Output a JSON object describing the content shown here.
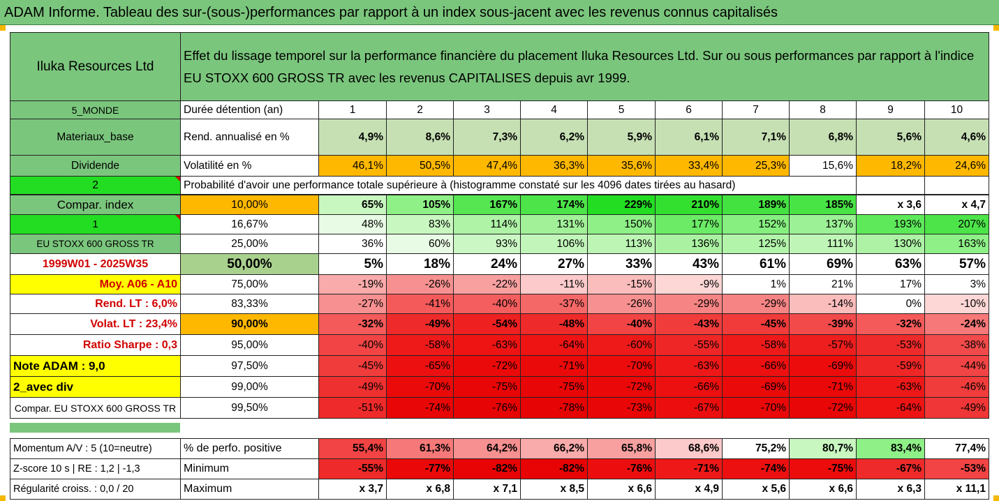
{
  "banner": "ADAM Informe. Tableau des sur-(sous-)performances par rapport à un index sous-jacent avec les revenus connus capitalisés",
  "header": {
    "company": "Iluka Resources Ltd",
    "description": "Effet du lissage temporel sur la performance financière du placement Iluka Resources Ltd. Sur ou sous performances par rapport à l'indice EU STOXX 600 GROSS TR avec les revenus CAPITALISES depuis avr 1999."
  },
  "years": [
    "1",
    "2",
    "3",
    "4",
    "5",
    "6",
    "7",
    "8",
    "9",
    "10"
  ],
  "rows_top": {
    "r1": {
      "left": "5_MONDE",
      "label": "Durée détention (an)"
    },
    "r2": {
      "left": "Materiaux_base",
      "label": "Rend. annualisé en %",
      "values": [
        "4,9%",
        "8,6%",
        "7,3%",
        "6,2%",
        "5,9%",
        "6,1%",
        "7,1%",
        "6,8%",
        "5,6%",
        "4,6%"
      ]
    },
    "r3": {
      "left": "Dividende",
      "label": "Volatilité en %",
      "values": [
        "46,1%",
        "50,5%",
        "47,4%",
        "36,3%",
        "35,6%",
        "33,4%",
        "25,3%",
        "15,6%",
        "18,2%",
        "24,6%"
      ]
    },
    "r4": {
      "left": "2",
      "label": "Probabilité d'avoir une performance totale supérieure à (histogramme constaté sur les 4096 dates tirées au hasard)"
    }
  },
  "prob_rows": [
    {
      "left": "Compar. index",
      "pct": "10,00%",
      "values": [
        "65%",
        "105%",
        "167%",
        "174%",
        "229%",
        "210%",
        "189%",
        "185%",
        "x 3,6",
        "x 4,7"
      ]
    },
    {
      "left": "1",
      "pct": "16,67%",
      "values": [
        "48%",
        "83%",
        "114%",
        "131%",
        "150%",
        "177%",
        "152%",
        "137%",
        "193%",
        "207%"
      ]
    },
    {
      "left": "EU STOXX 600 GROSS TR",
      "pct": "25,00%",
      "values": [
        "36%",
        "60%",
        "93%",
        "106%",
        "113%",
        "136%",
        "125%",
        "111%",
        "130%",
        "163%"
      ]
    },
    {
      "left": "1999W01 - 2025W35",
      "pct": "50,00%",
      "values": [
        "5%",
        "18%",
        "24%",
        "27%",
        "33%",
        "43%",
        "61%",
        "69%",
        "63%",
        "57%"
      ]
    },
    {
      "left": "Moy. A06 - A10",
      "pct": "75,00%",
      "values": [
        "-19%",
        "-26%",
        "-22%",
        "-11%",
        "-15%",
        "-9%",
        "1%",
        "21%",
        "17%",
        "3%"
      ]
    },
    {
      "left": "Rend. LT :    6,0%",
      "pct": "83,33%",
      "values": [
        "-27%",
        "-41%",
        "-40%",
        "-37%",
        "-26%",
        "-29%",
        "-29%",
        "-14%",
        "0%",
        "-10%"
      ]
    },
    {
      "left": "Volat. LT :    23,4%",
      "pct": "90,00%",
      "values": [
        "-32%",
        "-49%",
        "-54%",
        "-48%",
        "-40%",
        "-43%",
        "-45%",
        "-39%",
        "-32%",
        "-24%"
      ]
    },
    {
      "left": "Ratio Sharpe :    0,3",
      "pct": "95,00%",
      "values": [
        "-40%",
        "-58%",
        "-63%",
        "-64%",
        "-60%",
        "-55%",
        "-58%",
        "-57%",
        "-53%",
        "-38%"
      ]
    },
    {
      "left": "Note ADAM : 9,0",
      "pct": "97,50%",
      "values": [
        "-45%",
        "-65%",
        "-72%",
        "-71%",
        "-70%",
        "-63%",
        "-66%",
        "-69%",
        "-59%",
        "-44%"
      ]
    },
    {
      "left": "2_avec div",
      "pct": "99,00%",
      "values": [
        "-49%",
        "-70%",
        "-75%",
        "-75%",
        "-72%",
        "-66%",
        "-69%",
        "-71%",
        "-63%",
        "-46%"
      ]
    },
    {
      "left": "Compar. EU STOXX 600 GROSS TR",
      "pct": "99,50%",
      "values": [
        "-51%",
        "-74%",
        "-76%",
        "-78%",
        "-73%",
        "-67%",
        "-70%",
        "-72%",
        "-64%",
        "-49%"
      ]
    }
  ],
  "bottom_rows": [
    {
      "left": "Momentum A/V : 5 (10=neutre)",
      "label": "% de perfo. positive",
      "values": [
        "55,4%",
        "61,3%",
        "64,2%",
        "66,2%",
        "65,8%",
        "68,6%",
        "75,2%",
        "80,7%",
        "83,4%",
        "77,4%"
      ]
    },
    {
      "left": "Z-score 10 s  |  RE : 1,2  |  -1,3",
      "label": "Minimum",
      "values": [
        "-55%",
        "-77%",
        "-82%",
        "-82%",
        "-76%",
        "-71%",
        "-74%",
        "-75%",
        "-67%",
        "-53%"
      ]
    },
    {
      "left": "Régularité croiss. : 0,0 / 20",
      "label": "Maximum",
      "values": [
        "x 3,7",
        "x 6,8",
        "x 7,1",
        "x 8,5",
        "x 6,6",
        "x 4,9",
        "x 5,6",
        "x 6,6",
        "x 6,3",
        "x 11,1"
      ]
    }
  ],
  "colors": {
    "header_green": "#7bc67d",
    "bright_green": "#22dd22",
    "yellow": "#ffff00",
    "orange": "#ffb800",
    "row_bg": {
      "rend": [
        "#c6e0b4",
        "#c6e0b4",
        "#c6e0b4",
        "#c6e0b4",
        "#c6e0b4",
        "#c6e0b4",
        "#c6e0b4",
        "#c6e0b4",
        "#c6e0b4",
        "#c6e0b4"
      ],
      "vol": [
        "#ffb800",
        "#ffb800",
        "#ffb800",
        "#ffb800",
        "#ffb800",
        "#ffb800",
        "#ffb800",
        "#ffffff",
        "#ffb800",
        "#ffb800"
      ],
      "p0": [
        "#c8f7c0",
        "#8ef087",
        "#55e652",
        "#4ce449",
        "#22dd22",
        "#33e030",
        "#44e241",
        "#48e345",
        "#ffffff",
        "#ffffff"
      ],
      "p1": [
        "#e8fbe4",
        "#c8f7c0",
        "#aef3a6",
        "#a2f199",
        "#8ef087",
        "#6beb66",
        "#86ef80",
        "#9cf095",
        "#5ee95a",
        "#4ce449"
      ],
      "p2": [
        "#ffffff",
        "#e8fbe4",
        "#cbf7c4",
        "#c2f5ba",
        "#bcf5b4",
        "#aaf2a2",
        "#b2f4aa",
        "#bff5b7",
        "#adf2a5",
        "#8ef087"
      ],
      "p3": [
        "#ffffff",
        "#ffffff",
        "#ffffff",
        "#ffffff",
        "#ffffff",
        "#ffffff",
        "#ffffff",
        "#ffffff",
        "#ffffff",
        "#ffffff"
      ],
      "p4": [
        "#f9aaaa",
        "#f79090",
        "#f8a0a0",
        "#fccaca",
        "#fbbcbc",
        "#fdd6d6",
        "#ffffff",
        "#ffffff",
        "#ffffff",
        "#ffffff"
      ],
      "p5": [
        "#f79090",
        "#f45a5a",
        "#f45e5e",
        "#f56868",
        "#f79090",
        "#f68484",
        "#f68484",
        "#fbbcbc",
        "#ffffff",
        "#fdd6d6"
      ],
      "p6": [
        "#f45a5a",
        "#ef2a2a",
        "#ee2020",
        "#ef2a2a",
        "#f24444",
        "#f13c3c",
        "#f13a3a",
        "#f24a4a",
        "#f45a5a",
        "#f67878"
      ],
      "p7": [
        "#f24444",
        "#ee1a1a",
        "#ee1414",
        "#ee1414",
        "#ee1a1a",
        "#ef2626",
        "#ee1a1a",
        "#ee1e1e",
        "#ef2a2a",
        "#f24a4a"
      ],
      "p8": [
        "#f13c3c",
        "#ec1010",
        "#ea0a0a",
        "#ea0a0a",
        "#ec0c0c",
        "#ee1818",
        "#ec1010",
        "#ec0c0c",
        "#ef2626",
        "#f24444"
      ],
      "p9": [
        "#ef3030",
        "#ea0a0a",
        "#e80606",
        "#e80606",
        "#ea0808",
        "#ec1010",
        "#ea0a0a",
        "#ea0808",
        "#ee1818",
        "#f13c3c"
      ],
      "p10": [
        "#ef2a2a",
        "#e80606",
        "#e60404",
        "#e60404",
        "#e80606",
        "#ec0e0e",
        "#ea0808",
        "#e80606",
        "#ee1414",
        "#f03636"
      ],
      "b0": [
        "#f24444",
        "#f67878",
        "#f79090",
        "#f9aaaa",
        "#f8a0a0",
        "#fccaca",
        "#ffffff",
        "#c8f7c0",
        "#8ef087",
        "#ffffff"
      ],
      "b1": [
        "#ef2a2a",
        "#ea0808",
        "#e80404",
        "#e80404",
        "#ec0e0e",
        "#ee1818",
        "#ec1010",
        "#ec0c0c",
        "#ef2a2a",
        "#f24444"
      ],
      "b2": [
        "#ffffff",
        "#ffffff",
        "#ffffff",
        "#ffffff",
        "#ffffff",
        "#ffffff",
        "#ffffff",
        "#ffffff",
        "#ffffff",
        "#ffffff"
      ]
    }
  }
}
